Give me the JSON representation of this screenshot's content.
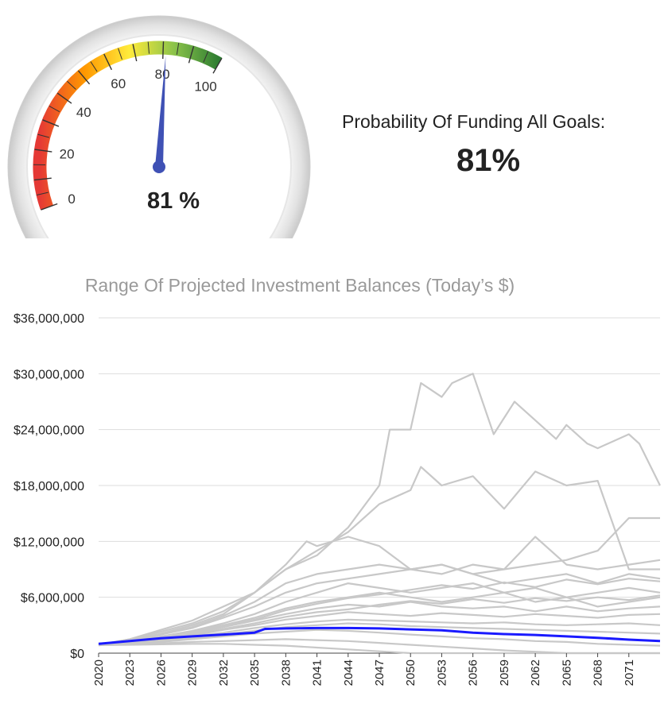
{
  "gauge": {
    "min": 0,
    "max": 100,
    "value": 81,
    "value_label": "81 %",
    "tick_labels": [
      "0",
      "20",
      "40",
      "60",
      "80",
      "100"
    ],
    "needle_color": "#3f51b5",
    "band_colors": [
      "#e53935",
      "#ff9800",
      "#ffeb3b",
      "#8bc34a",
      "#2e7d32"
    ]
  },
  "summary": {
    "caption": "Probability Of Funding All Goals:",
    "value": "81%"
  },
  "chart_data": {
    "type": "line",
    "title": "Range Of Projected Investment Balances (Today’s $)",
    "xlabel": "",
    "ylabel": "",
    "ylim": [
      0,
      36000000
    ],
    "xlim": [
      2020,
      2074
    ],
    "x_tick_labels": [
      "2020",
      "2023",
      "2026",
      "2029",
      "2032",
      "2035",
      "2038",
      "2041",
      "2044",
      "2047",
      "2050",
      "2053",
      "2056",
      "2059",
      "2062",
      "2065",
      "2068",
      "2071"
    ],
    "y_ticks": [
      0,
      6000000,
      12000000,
      18000000,
      24000000,
      30000000,
      36000000
    ],
    "y_tick_labels": [
      "$0",
      "$6,000,000",
      "$12,000,000",
      "$18,000,000",
      "$24,000,000",
      "$30,000,000",
      "$36,000,000"
    ],
    "grid": true,
    "simulation_color": "#c8c8c8",
    "median_color": "#1a1aff",
    "median": {
      "x": [
        2020,
        2023,
        2026,
        2029,
        2032,
        2035,
        2036,
        2038,
        2041,
        2044,
        2047,
        2050,
        2053,
        2056,
        2059,
        2062,
        2065,
        2068,
        2071,
        2074
      ],
      "values": [
        1000000,
        1300000,
        1600000,
        1800000,
        2000000,
        2200000,
        2600000,
        2650000,
        2700000,
        2700000,
        2650000,
        2550000,
        2450000,
        2200000,
        2050000,
        1950000,
        1800000,
        1650000,
        1450000,
        1300000
      ]
    },
    "simulations": [
      {
        "x": [
          2020,
          2023,
          2026,
          2029,
          2032,
          2035,
          2038,
          2041,
          2044,
          2047,
          2048,
          2050,
          2051,
          2053,
          2054,
          2056,
          2058,
          2060,
          2062,
          2064,
          2065,
          2067,
          2068,
          2071,
          2072,
          2074
        ],
        "values": [
          900000,
          1500000,
          2500000,
          3500000,
          5000000,
          6500000,
          9000000,
          10500000,
          13500000,
          18000000,
          24000000,
          24000000,
          29000000,
          27500000,
          29000000,
          30000000,
          23500000,
          27000000,
          25000000,
          23000000,
          24500000,
          22500000,
          22000000,
          23500000,
          22500000,
          18000000
        ]
      },
      {
        "x": [
          2020,
          2023,
          2026,
          2029,
          2032,
          2035,
          2038,
          2041,
          2044,
          2047,
          2050,
          2051,
          2053,
          2056,
          2059,
          2062,
          2065,
          2068,
          2071,
          2074
        ],
        "values": [
          900000,
          1500000,
          2300000,
          3200000,
          4500000,
          6500000,
          9000000,
          11000000,
          13000000,
          16000000,
          17500000,
          20000000,
          18000000,
          19000000,
          15500000,
          19500000,
          18000000,
          18500000,
          9000000,
          9000000
        ]
      },
      {
        "x": [
          2020,
          2023,
          2026,
          2029,
          2032,
          2035,
          2038,
          2040,
          2041,
          2044,
          2047,
          2050,
          2053,
          2056,
          2059,
          2062,
          2065,
          2068,
          2071,
          2074
        ],
        "values": [
          900000,
          1400000,
          2100000,
          3000000,
          4200000,
          6500000,
          9500000,
          12000000,
          11500000,
          12500000,
          11500000,
          9000000,
          9500000,
          8500000,
          9000000,
          9500000,
          10000000,
          11000000,
          14500000,
          14500000
        ]
      },
      {
        "x": [
          2020,
          2023,
          2026,
          2029,
          2032,
          2035,
          2038,
          2041,
          2044,
          2047,
          2050,
          2053,
          2056,
          2059,
          2062,
          2065,
          2068,
          2071,
          2074
        ],
        "values": [
          900000,
          1400000,
          2000000,
          2800000,
          4000000,
          5500000,
          7500000,
          8500000,
          9000000,
          9500000,
          9000000,
          8500000,
          9500000,
          9000000,
          12500000,
          9500000,
          9000000,
          9500000,
          10000000
        ]
      },
      {
        "x": [
          2020,
          2023,
          2026,
          2029,
          2032,
          2035,
          2038,
          2041,
          2044,
          2047,
          2050,
          2053,
          2056,
          2059,
          2062,
          2065,
          2068,
          2071,
          2074
        ],
        "values": [
          900000,
          1400000,
          2000000,
          2700000,
          3800000,
          5000000,
          6500000,
          7500000,
          8000000,
          8500000,
          9000000,
          9500000,
          8500000,
          7500000,
          8000000,
          8500000,
          7500000,
          8500000,
          8000000
        ]
      },
      {
        "x": [
          2020,
          2023,
          2026,
          2029,
          2032,
          2035,
          2038,
          2041,
          2044,
          2047,
          2050,
          2053,
          2056,
          2059,
          2062,
          2065,
          2068,
          2071,
          2074
        ],
        "values": [
          900000,
          1300000,
          1800000,
          2400000,
          3200000,
          4200000,
          5500000,
          6500000,
          7500000,
          7000000,
          6500000,
          7000000,
          7500000,
          6500000,
          7000000,
          6000000,
          6500000,
          7000000,
          6500000
        ]
      },
      {
        "x": [
          2020,
          2023,
          2026,
          2029,
          2032,
          2035,
          2038,
          2041,
          2044,
          2047,
          2050,
          2053,
          2056,
          2059,
          2062,
          2065,
          2068,
          2071,
          2074
        ],
        "values": [
          900000,
          1300000,
          1700000,
          2300000,
          3000000,
          3800000,
          4800000,
          5500000,
          6000000,
          6500000,
          6000000,
          5500000,
          6000000,
          6500000,
          5500000,
          6000000,
          5000000,
          5500000,
          6000000
        ]
      },
      {
        "x": [
          2020,
          2023,
          2026,
          2029,
          2032,
          2035,
          2038,
          2041,
          2044,
          2047,
          2050,
          2053,
          2056,
          2059,
          2062,
          2065,
          2068,
          2071,
          2074
        ],
        "values": [
          900000,
          1200000,
          1600000,
          2100000,
          2800000,
          3500000,
          4200000,
          4800000,
          5200000,
          5000000,
          5500000,
          5000000,
          4800000,
          5000000,
          4500000,
          5000000,
          4500000,
          4800000,
          5000000
        ]
      },
      {
        "x": [
          2020,
          2023,
          2026,
          2029,
          2032,
          2035,
          2038,
          2041,
          2044,
          2047,
          2050,
          2053,
          2056,
          2059,
          2062,
          2065,
          2068,
          2071,
          2074
        ],
        "values": [
          900000,
          1200000,
          1500000,
          1900000,
          2500000,
          3000000,
          3600000,
          4000000,
          4400000,
          4200000,
          4000000,
          4300000,
          4100000,
          3900000,
          4200000,
          4000000,
          3800000,
          4100000,
          4200000
        ]
      },
      {
        "x": [
          2020,
          2023,
          2026,
          2029,
          2032,
          2035,
          2038,
          2041,
          2044,
          2047,
          2050,
          2053,
          2056,
          2059,
          2062,
          2065,
          2068,
          2071,
          2074
        ],
        "values": [
          850000,
          1100000,
          1400000,
          1800000,
          2200000,
          2700000,
          3100000,
          3400000,
          3600000,
          3500000,
          3400000,
          3300000,
          3200000,
          3300000,
          3100000,
          3000000,
          3100000,
          3200000,
          3000000
        ]
      },
      {
        "x": [
          2020,
          2023,
          2026,
          2029,
          2032,
          2035,
          2038,
          2041,
          2044,
          2047,
          2050,
          2053,
          2056,
          2059,
          2062,
          2065,
          2068,
          2071,
          2074
        ],
        "values": [
          850000,
          1000000,
          1200000,
          1500000,
          1800000,
          2100000,
          2300000,
          2500000,
          2400000,
          2200000,
          2000000,
          1800000,
          1600000,
          1500000,
          1300000,
          1200000,
          1000000,
          900000,
          800000
        ]
      },
      {
        "x": [
          2020,
          2023,
          2026,
          2029,
          2032,
          2035,
          2038,
          2041,
          2044,
          2047,
          2050,
          2053,
          2056,
          2059,
          2062,
          2065,
          2068,
          2071,
          2074
        ],
        "values": [
          850000,
          950000,
          1050000,
          1200000,
          1300000,
          1400000,
          1500000,
          1400000,
          1300000,
          1100000,
          900000,
          700000,
          500000,
          300000,
          150000,
          0,
          0,
          0,
          0
        ]
      },
      {
        "x": [
          2020,
          2023,
          2026,
          2029,
          2032,
          2035,
          2038,
          2041,
          2044,
          2047,
          2050,
          2053,
          2056,
          2059,
          2062,
          2065,
          2068,
          2071,
          2074
        ],
        "values": [
          850000,
          900000,
          950000,
          1000000,
          1000000,
          900000,
          800000,
          600000,
          400000,
          200000,
          0,
          0,
          0,
          0,
          0,
          0,
          0,
          0,
          0
        ]
      },
      {
        "x": [
          2020,
          2023,
          2026,
          2029,
          2032,
          2035,
          2038,
          2041,
          2044,
          2047,
          2050,
          2053,
          2056,
          2059,
          2062,
          2065,
          2068,
          2071,
          2074
        ],
        "values": [
          850000,
          1200000,
          1600000,
          2000000,
          2600000,
          3200000,
          3900000,
          4400000,
          4700000,
          5200000,
          5600000,
          5300000,
          5800000,
          5400000,
          5900000,
          5600000,
          6000000,
          5700000,
          6200000
        ]
      },
      {
        "x": [
          2020,
          2023,
          2026,
          2029,
          2032,
          2035,
          2038,
          2041,
          2044,
          2047,
          2050,
          2053,
          2056,
          2059,
          2062,
          2065,
          2068,
          2071,
          2074
        ],
        "values": [
          850000,
          1100000,
          1300000,
          1600000,
          2000000,
          2400000,
          2800000,
          3000000,
          3200000,
          3100000,
          2900000,
          2800000,
          2700000,
          2600000,
          2500000,
          2400000,
          2300000,
          2200000,
          2100000
        ]
      },
      {
        "x": [
          2020,
          2023,
          2026,
          2029,
          2032,
          2035,
          2038,
          2041,
          2044,
          2047,
          2050,
          2053,
          2056,
          2059,
          2062,
          2065,
          2068,
          2071,
          2074
        ],
        "values": [
          900000,
          1250000,
          1700000,
          2200000,
          2900000,
          3600000,
          4600000,
          5300000,
          5900000,
          6300000,
          6800000,
          7300000,
          6900000,
          7600000,
          7100000,
          7900000,
          7400000,
          8000000,
          7700000
        ]
      }
    ]
  }
}
